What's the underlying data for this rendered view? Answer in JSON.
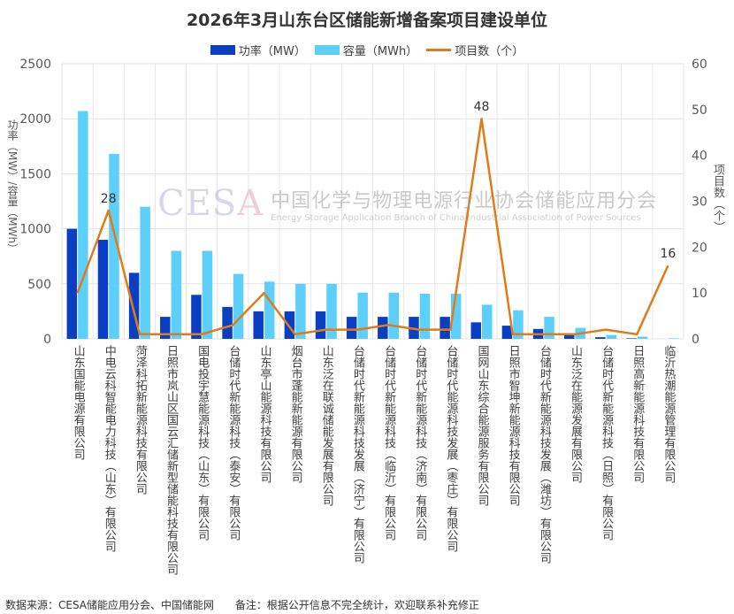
{
  "chart_data": {
    "type": "bar+line",
    "title": "2026年3月山东台区储能新增备案项目建设单位",
    "ylabel_left": "功率（MW）/容量（MWh）",
    "ylabel_right": "项目数（个）",
    "ylim_left": [
      0,
      2500
    ],
    "ylim_right": [
      0,
      60
    ],
    "yticks_left": [
      "0",
      "500",
      "1000",
      "1500",
      "2000",
      "2500"
    ],
    "yticks_right": [
      "0",
      "10",
      "20",
      "30",
      "40",
      "50",
      "60"
    ],
    "grid": true,
    "legend_position": "top",
    "categories": [
      "山东国能电源有限公司",
      "中电云科智能电力科技（山东）有限公司",
      "菏泽科拓新能源科技有限公司",
      "日照市岚山区国云汇储新型储能科技有限公司",
      "国电投宇慧能源科技（山东）有限公司",
      "台储时代新能源科技（泰安）有限公司",
      "山东亭山能源科技有限公司",
      "烟台市蓬能新能源有限公司",
      "山东泛在联诚储能发展有限公司",
      "台储时代新能源科技发展（济宁）有限公司",
      "台储时代新能源科技（临沂）有限公司",
      "台储时代新能源科技（济南）有限公司",
      "台储时代能源科技发展（枣庄）有限公司",
      "国网山东综合能源服务有限公司",
      "日照市智坤新能源科技有限公司",
      "台储时代新能源科技发展（潍坊）有限公司",
      "山东泛在能源发展有限公司",
      "台储时代新能源科技（日照）有限公司",
      "日照高新能源科技有限公司",
      "临沂热潮能源管理有限公司"
    ],
    "series": [
      {
        "name": "功率（MW）",
        "type": "bar",
        "axis": "left",
        "color": "#0a3fc4",
        "values": [
          1000,
          900,
          600,
          200,
          400,
          290,
          250,
          250,
          250,
          200,
          200,
          200,
          200,
          150,
          120,
          90,
          40,
          15,
          5,
          0
        ]
      },
      {
        "name": "容量（MWh）",
        "type": "bar",
        "axis": "left",
        "color": "#5ccffa",
        "values": [
          2070,
          1680,
          1200,
          800,
          800,
          590,
          520,
          500,
          500,
          420,
          420,
          410,
          410,
          310,
          260,
          200,
          100,
          35,
          20,
          5
        ]
      },
      {
        "name": "项目数（个）",
        "type": "line",
        "axis": "right",
        "color": "#e07b1a",
        "values": [
          10,
          28,
          1,
          1,
          1,
          3,
          10,
          1,
          2,
          2,
          3,
          2,
          2,
          48,
          1,
          1,
          1,
          2,
          1,
          16
        ]
      }
    ],
    "data_labels": [
      {
        "series": "项目数（个）",
        "category_index": 1,
        "text": "28"
      },
      {
        "series": "项目数（个）",
        "category_index": 13,
        "text": "48"
      },
      {
        "series": "项目数（个）",
        "category_index": 19,
        "text": "16"
      }
    ]
  },
  "legend": {
    "power": "功率（MW）",
    "capacity": "容量（MWh）",
    "count": "项目数（个）"
  },
  "watermark": {
    "logo": "CESA",
    "cn": "中国化学与物理电源行业协会储能应用分会",
    "en": "Energy Storage Application Branch of China Industrial Association of Power Sources"
  },
  "footer": {
    "source": "数据来源：CESA储能应用分会、中国储能网",
    "note": "备注：根据公开信息不完全统计，欢迎联系补充修正"
  }
}
